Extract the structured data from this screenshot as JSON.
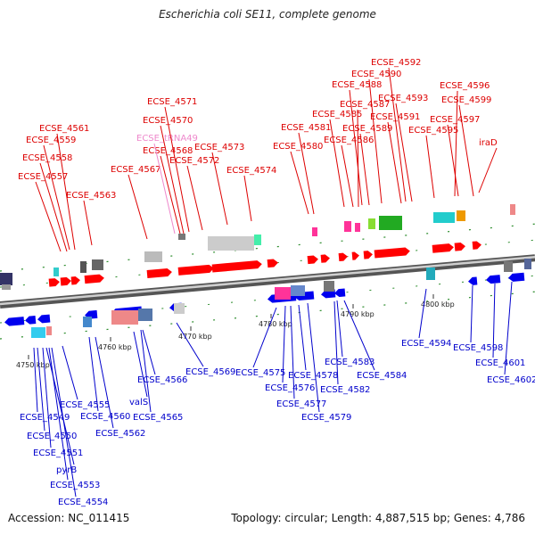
{
  "title": "Escherichia coli SE11, complete genome",
  "footer": {
    "accession": "Accession: NC_011415",
    "summary": "Topology: circular; Length: 4,887,515 bp; Genes: 4,786"
  },
  "colors": {
    "forward_label": "#dd0000",
    "reverse_label": "#0000cc",
    "rna_label": "#ee88cc",
    "backbone": "#8c8c8c"
  },
  "kbp_labels": [
    "4750 kbp",
    "4760 kbp",
    "4770 kbp",
    "4780 kbp",
    "4790 kbp",
    "4800 kbp"
  ],
  "forward_genes": [
    "ECSE_4557",
    "ECSE_4558",
    "ECSE_4559",
    "ECSE_4561",
    "ECSE_4563",
    "ECSE_4567",
    "ECSE_4568",
    "ECSE_tRNA49",
    "ECSE_4570",
    "ECSE_4571",
    "ECSE_4572",
    "ECSE_4573",
    "ECSE_4574",
    "ECSE_4580",
    "ECSE_4581",
    "ECSE_4585",
    "ECSE_4586",
    "ECSE_4587",
    "ECSE_4588",
    "ECSE_4589",
    "ECSE_4590",
    "ECSE_4591",
    "ECSE_4592",
    "ECSE_4593",
    "ECSE_4595",
    "ECSE_4596",
    "ECSE_4597",
    "ECSE_4599",
    "iraD"
  ],
  "reverse_genes": [
    "ECSE_4549",
    "ECSE_4550",
    "ECSE_4551",
    "pyrB",
    "ECSE_4553",
    "ECSE_4554",
    "ECSE_4555",
    "ECSE_4560",
    "ECSE_4562",
    "valS",
    "ECSE_4565",
    "ECSE_4566",
    "ECSE_4569",
    "ECSE_4575",
    "ECSE_4576",
    "ECSE_4577",
    "ECSE_4578",
    "ECSE_4579",
    "ECSE_4582",
    "ECSE_4583",
    "ECSE_4584",
    "ECSE_4594",
    "ECSE_4598",
    "ECSE_4601",
    "ECSE_4602"
  ]
}
